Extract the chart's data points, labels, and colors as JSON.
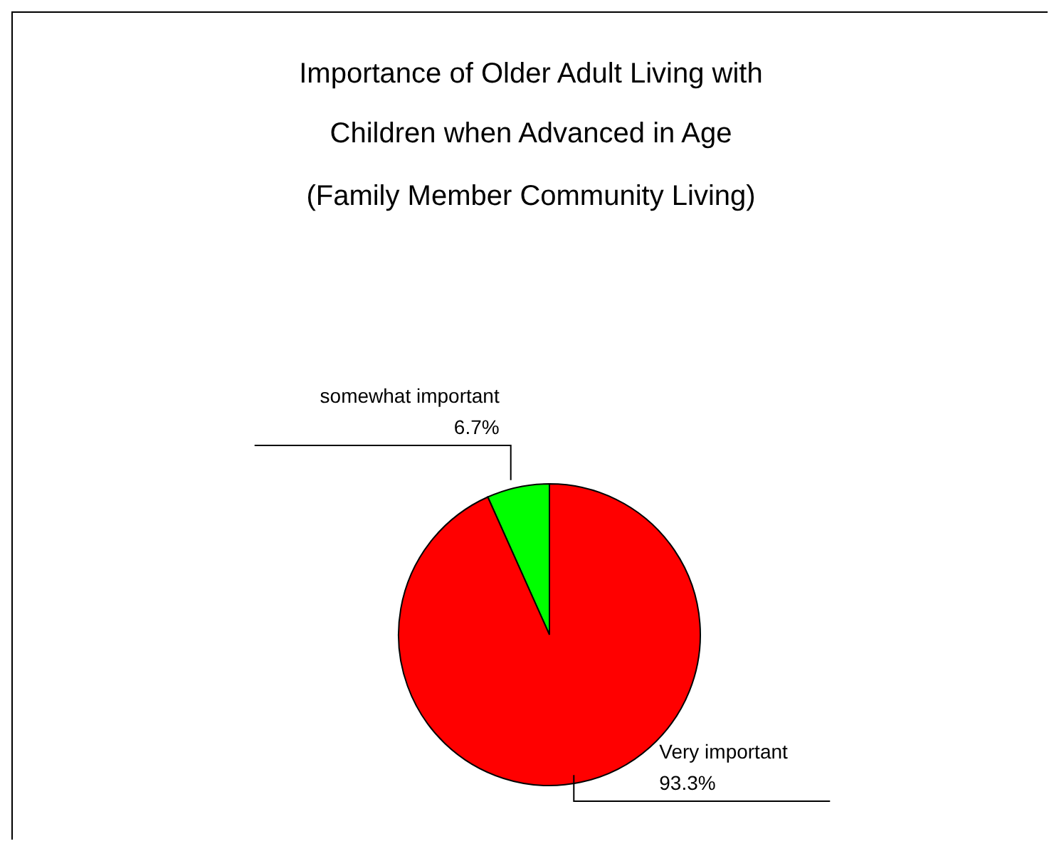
{
  "chart_data": {
    "type": "pie",
    "title": "Importance of Older Adult Living with Children when Advanced in Age",
    "subtitle": "(Family Member Community Living)",
    "categories": [
      "somewhat important",
      "Very important"
    ],
    "values": [
      6.7,
      93.3
    ],
    "value_labels": [
      "6.7%",
      "93.3%"
    ],
    "colors": [
      "#00ff00",
      "#ff0000"
    ],
    "legend": false
  }
}
